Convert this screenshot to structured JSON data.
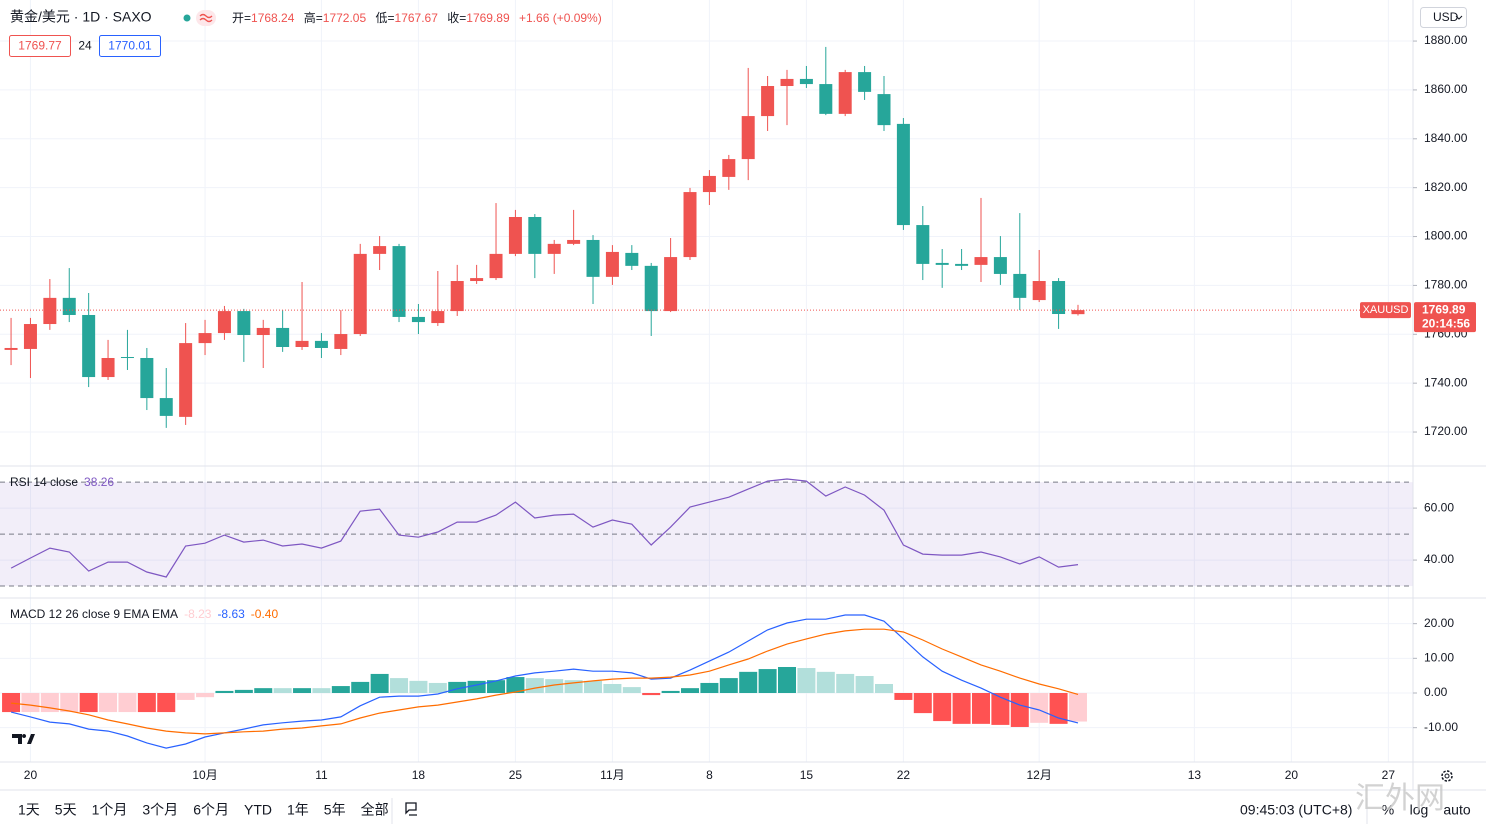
{
  "header": {
    "symbol": "黄金/美元 · 1D · SAXO",
    "ohlc_labels": [
      "开=",
      "高=",
      "低=",
      "收="
    ],
    "change": "+1.66 (+0.09%)",
    "bid": "1769.77",
    "spread": "24",
    "ask": "1770.01",
    "currency": "USD"
  },
  "toolbar": {
    "ranges": [
      "1天",
      "5天",
      "1个月",
      "3个月",
      "6个月",
      "YTD",
      "1年",
      "5年",
      "全部"
    ],
    "time": "09:45:03 (UTC+8)",
    "scale_options": [
      "%",
      "log",
      "auto"
    ],
    "watermark": "汇外网"
  },
  "chart_data": [
    {
      "type": "candlestick",
      "up_color": "#ef5350",
      "down_color": "#26a69a",
      "ohlc": [
        [
          1753.6,
          1766.7,
          1747.4,
          1754.4
        ],
        [
          1754.0,
          1766.7,
          1742.1,
          1764.2
        ],
        [
          1764.2,
          1782.6,
          1761.8,
          1774.9
        ],
        [
          1774.9,
          1787.1,
          1765.0,
          1767.9
        ],
        [
          1767.9,
          1776.9,
          1738.4,
          1742.5
        ],
        [
          1742.5,
          1757.7,
          1741.3,
          1750.3
        ],
        [
          1750.7,
          1761.8,
          1745.4,
          1750.3
        ],
        [
          1750.3,
          1754.4,
          1729.0,
          1733.9
        ],
        [
          1733.9,
          1746.2,
          1721.7,
          1726.6
        ],
        [
          1726.2,
          1764.6,
          1722.9,
          1756.4
        ],
        [
          1756.4,
          1765.9,
          1751.5,
          1760.5
        ],
        [
          1760.5,
          1771.6,
          1757.7,
          1769.5
        ],
        [
          1769.5,
          1770.4,
          1748.7,
          1759.7
        ],
        [
          1759.7,
          1765.9,
          1746.2,
          1762.6
        ],
        [
          1762.6,
          1769.9,
          1752.8,
          1754.8
        ],
        [
          1754.8,
          1781.4,
          1753.6,
          1757.3
        ],
        [
          1757.3,
          1760.5,
          1750.3,
          1754.4
        ],
        [
          1754.0,
          1769.9,
          1751.5,
          1760.1
        ],
        [
          1760.1,
          1797.0,
          1759.3,
          1792.9
        ],
        [
          1792.9,
          1800.2,
          1786.3,
          1796.1
        ],
        [
          1796.1,
          1797.0,
          1765.0,
          1767.1
        ],
        [
          1767.1,
          1772.4,
          1760.1,
          1765.0
        ],
        [
          1764.6,
          1785.9,
          1763.4,
          1769.5
        ],
        [
          1769.5,
          1788.4,
          1767.5,
          1781.8
        ],
        [
          1781.8,
          1788.4,
          1780.6,
          1783.0
        ],
        [
          1783.0,
          1813.7,
          1782.2,
          1792.9
        ],
        [
          1792.9,
          1810.9,
          1792.0,
          1808.0
        ],
        [
          1808.0,
          1809.2,
          1783.0,
          1792.9
        ],
        [
          1792.9,
          1798.6,
          1784.7,
          1797.0
        ],
        [
          1797.0,
          1810.9,
          1796.5,
          1798.6
        ],
        [
          1798.6,
          1800.6,
          1772.4,
          1783.5
        ],
        [
          1783.5,
          1796.5,
          1780.2,
          1793.7
        ],
        [
          1793.3,
          1796.5,
          1786.3,
          1788.0
        ],
        [
          1788.0,
          1789.2,
          1759.3,
          1769.5
        ],
        [
          1769.5,
          1799.4,
          1769.1,
          1791.6
        ],
        [
          1791.6,
          1819.9,
          1790.4,
          1818.2
        ],
        [
          1818.2,
          1827.2,
          1812.9,
          1824.8
        ],
        [
          1824.4,
          1833.4,
          1819.1,
          1831.7
        ],
        [
          1831.7,
          1869.0,
          1823.1,
          1849.3
        ],
        [
          1849.3,
          1865.7,
          1843.2,
          1861.6
        ],
        [
          1861.6,
          1868.2,
          1845.6,
          1864.5
        ],
        [
          1864.5,
          1869.8,
          1860.8,
          1862.4
        ],
        [
          1862.4,
          1877.6,
          1849.7,
          1850.2
        ],
        [
          1850.2,
          1868.2,
          1849.3,
          1867.3
        ],
        [
          1867.3,
          1869.8,
          1855.9,
          1859.2
        ],
        [
          1858.3,
          1865.7,
          1843.2,
          1845.6
        ],
        [
          1846.1,
          1848.5,
          1802.7,
          1804.7
        ],
        [
          1804.7,
          1812.5,
          1782.2,
          1788.8
        ],
        [
          1789.2,
          1794.9,
          1779.0,
          1788.4
        ],
        [
          1788.8,
          1794.9,
          1786.3,
          1788.0
        ],
        [
          1788.4,
          1815.8,
          1781.4,
          1791.6
        ],
        [
          1791.6,
          1800.2,
          1780.2,
          1784.7
        ],
        [
          1784.7,
          1809.6,
          1769.9,
          1774.9
        ],
        [
          1774.0,
          1794.5,
          1773.2,
          1781.8
        ],
        [
          1781.8,
          1783.0,
          1762.2,
          1768.3
        ],
        [
          1768.24,
          1772.05,
          1767.67,
          1769.89
        ]
      ],
      "xlim": [
        -0.57,
        72.27
      ],
      "xticks": [
        {
          "value": 1,
          "label": "20"
        },
        {
          "value": 10,
          "label": "10月"
        },
        {
          "value": 16,
          "label": "11"
        },
        {
          "value": 21,
          "label": "18"
        },
        {
          "value": 26,
          "label": "25"
        },
        {
          "value": 31,
          "label": "11月"
        },
        {
          "value": 36,
          "label": "8"
        },
        {
          "value": 41,
          "label": "15"
        },
        {
          "value": 46,
          "label": "22"
        },
        {
          "value": 53,
          "label": "12月"
        },
        {
          "value": 61,
          "label": "13"
        },
        {
          "value": 66,
          "label": "20"
        },
        {
          "value": 71,
          "label": "27"
        }
      ],
      "ylim": [
        1706.1,
        1896.8
      ],
      "yticks": [
        {
          "value": 1720,
          "label": "1720.00"
        },
        {
          "value": 1740,
          "label": "1740.00"
        },
        {
          "value": 1760,
          "label": "1760.00"
        },
        {
          "value": 1780,
          "label": "1780.00"
        },
        {
          "value": 1800,
          "label": "1800.00"
        },
        {
          "value": 1820,
          "label": "1820.00"
        },
        {
          "value": 1840,
          "label": "1840.00"
        },
        {
          "value": 1860,
          "label": "1860.00"
        },
        {
          "value": 1880,
          "label": "1880.00"
        }
      ],
      "grid": true,
      "price_line": {
        "symbol": "XAUUSD",
        "countdown": "20:14:56"
      }
    },
    {
      "type": "line",
      "title": "RSI 14 close",
      "series": [
        {
          "color": "#7e57c2",
          "values": [
            36.9,
            40.8,
            44.6,
            43.1,
            35.8,
            39.2,
            39.2,
            35.4,
            33.5,
            45.4,
            46.5,
            49.6,
            46.9,
            47.7,
            45.4,
            46.2,
            44.6,
            47.3,
            58.8,
            59.6,
            49.6,
            48.8,
            50.8,
            54.6,
            54.6,
            57.3,
            62.3,
            56.2,
            57.3,
            57.7,
            52.7,
            55.4,
            53.8,
            45.8,
            52.7,
            60.4,
            62.3,
            64.2,
            67.3,
            70.4,
            71.2,
            70.4,
            64.6,
            68.1,
            65.0,
            59.2,
            45.8,
            42.3,
            41.9,
            41.9,
            43.1,
            41.2,
            38.5,
            41.2,
            37.3,
            38.26
          ]
        }
      ],
      "ylim": [
        25.4,
        76.2
      ],
      "yticks": [
        {
          "value": 40,
          "label": "40.00"
        },
        {
          "value": 60,
          "label": "60.00"
        }
      ],
      "bands": [
        30,
        50,
        70
      ],
      "band_color": "#7e57c2"
    },
    {
      "type": "macd",
      "title": "MACD 12 26 close 9 EMA EMA",
      "series": [
        {
          "type": "bar",
          "values": [
            -5.5,
            -5.5,
            -5.5,
            -5.5,
            -5.5,
            -5.5,
            -5.5,
            -5.5,
            -5.5,
            -2.0,
            -1.2,
            0.6,
            0.9,
            1.4,
            1.4,
            1.4,
            1.4,
            2.0,
            3.2,
            5.5,
            4.3,
            3.5,
            2.9,
            3.2,
            3.5,
            3.7,
            4.6,
            4.3,
            4.0,
            3.7,
            3.5,
            2.6,
            1.7,
            -0.6,
            0.6,
            1.4,
            2.9,
            4.3,
            6.1,
            6.9,
            7.5,
            7.2,
            6.1,
            5.5,
            4.9,
            2.6,
            -2.0,
            -5.8,
            -8.1,
            -8.9,
            -8.9,
            -9.2,
            -9.8,
            -8.6,
            -8.9,
            -8.23
          ],
          "colors": [
            "#ff5252",
            "#ffcdd2",
            "#ffcdd2",
            "#ffcdd2",
            "#ff5252",
            "#ffcdd2",
            "#ffcdd2",
            "#ff5252",
            "#ff5252",
            "#ffcdd2",
            "#ffcdd2",
            "#26a69a",
            "#26a69a",
            "#26a69a",
            "#b2dfdb",
            "#26a69a",
            "#b2dfdb",
            "#26a69a",
            "#26a69a",
            "#26a69a",
            "#b2dfdb",
            "#b2dfdb",
            "#b2dfdb",
            "#26a69a",
            "#26a69a",
            "#26a69a",
            "#26a69a",
            "#b2dfdb",
            "#b2dfdb",
            "#b2dfdb",
            "#b2dfdb",
            "#b2dfdb",
            "#b2dfdb",
            "#ff5252",
            "#26a69a",
            "#26a69a",
            "#26a69a",
            "#26a69a",
            "#26a69a",
            "#26a69a",
            "#26a69a",
            "#b2dfdb",
            "#b2dfdb",
            "#b2dfdb",
            "#b2dfdb",
            "#b2dfdb",
            "#ff5252",
            "#ff5252",
            "#ff5252",
            "#ff5252",
            "#ff5252",
            "#ff5252",
            "#ff5252",
            "#ffcdd2",
            "#ff5252",
            "#ffcdd2"
          ]
        },
        {
          "type": "line",
          "color": "#2962ff",
          "values": [
            -5.5,
            -6.9,
            -8.4,
            -8.9,
            -10.4,
            -11.0,
            -12.4,
            -14.4,
            -15.9,
            -14.7,
            -12.7,
            -11.5,
            -10.4,
            -9.2,
            -8.6,
            -8.1,
            -7.8,
            -6.9,
            -3.7,
            -1.2,
            -0.9,
            -0.9,
            -0.3,
            1.2,
            2.3,
            3.5,
            4.9,
            5.8,
            6.3,
            6.9,
            6.3,
            6.3,
            5.8,
            4.0,
            4.3,
            6.6,
            9.2,
            11.8,
            15.0,
            18.2,
            20.2,
            21.3,
            21.3,
            22.5,
            22.5,
            20.7,
            15.6,
            10.4,
            6.3,
            3.7,
            1.4,
            -1.2,
            -3.5,
            -4.9,
            -7.2,
            -8.63
          ]
        },
        {
          "type": "line",
          "color": "#ff6d00",
          "values": [
            -2.9,
            -3.5,
            -4.3,
            -5.2,
            -6.3,
            -7.8,
            -8.9,
            -10.1,
            -11.0,
            -11.5,
            -11.8,
            -11.5,
            -11.2,
            -11.0,
            -10.4,
            -10.1,
            -9.5,
            -8.9,
            -7.2,
            -5.8,
            -4.9,
            -4.0,
            -3.5,
            -2.6,
            -1.7,
            -0.6,
            0.3,
            1.4,
            2.3,
            2.9,
            3.5,
            4.0,
            4.3,
            4.3,
            4.6,
            5.2,
            6.3,
            8.1,
            9.8,
            12.1,
            14.1,
            15.6,
            17.0,
            17.9,
            18.4,
            18.4,
            17.6,
            15.3,
            12.7,
            10.4,
            8.1,
            6.3,
            4.3,
            2.6,
            1.2,
            -0.4
          ],
          "value_labels": [
            null,
            null,
            null,
            null,
            null,
            null,
            null,
            null,
            null,
            null,
            null,
            null,
            null,
            null,
            null,
            null,
            null,
            null,
            null,
            null,
            null,
            null,
            null,
            null,
            null,
            null,
            null,
            null,
            null,
            null,
            null,
            null,
            null,
            null,
            null,
            null,
            null,
            null,
            null,
            null,
            null,
            null,
            null,
            null,
            null,
            null,
            null,
            null,
            null,
            null,
            null,
            null,
            null,
            null,
            null,
            "-0.40"
          ]
        }
      ],
      "ylim": [
        -19.9,
        27.4
      ],
      "yticks": [
        {
          "value": -10,
          "label": "-10.00"
        },
        {
          "value": 0,
          "label": "0.00"
        },
        {
          "value": 10,
          "label": "10.00"
        },
        {
          "value": 20,
          "label": "20.00"
        }
      ]
    }
  ]
}
